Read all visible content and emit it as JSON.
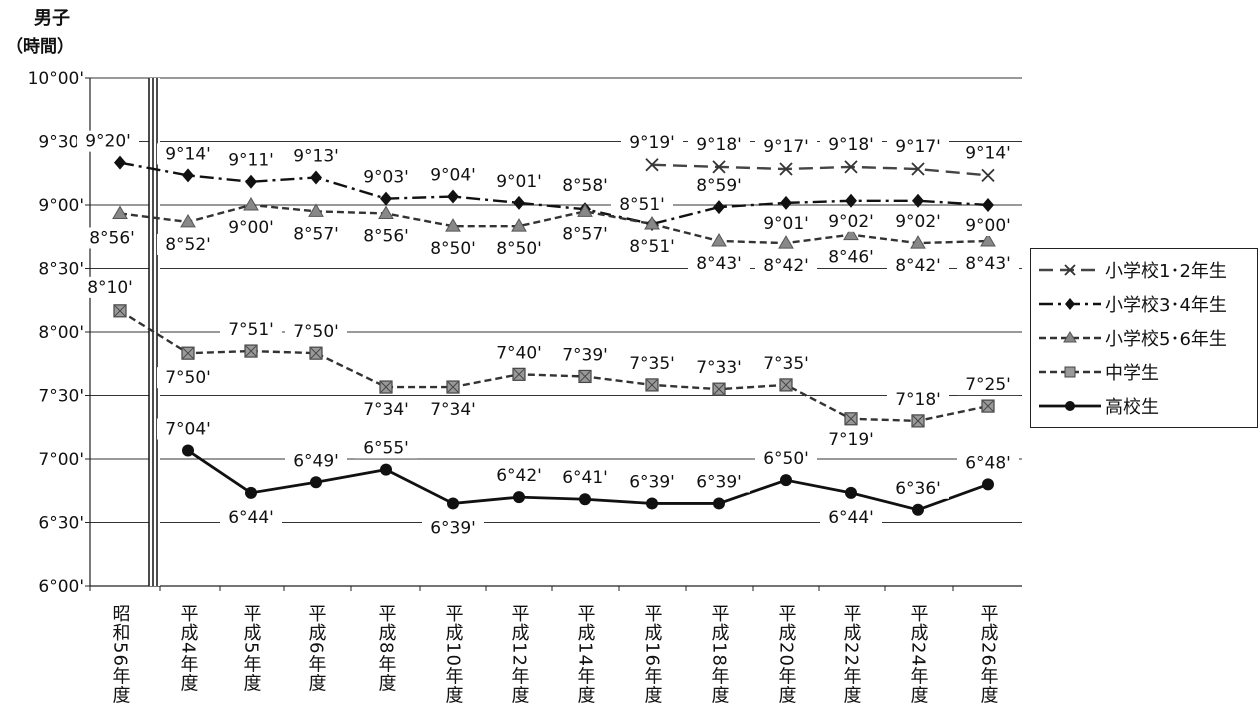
{
  "chart_data": {
    "type": "line",
    "title": "男子",
    "ylabel": "（時間）",
    "yunit": "minutes",
    "ylim": [
      360,
      600
    ],
    "yticks": [
      {
        "value": 600,
        "label": "10°00'"
      },
      {
        "value": 570,
        "label": "9°30'"
      },
      {
        "value": 540,
        "label": "9°00'"
      },
      {
        "value": 510,
        "label": "8°30'"
      },
      {
        "value": 480,
        "label": "8°00'"
      },
      {
        "value": 450,
        "label": "7°30'"
      },
      {
        "value": 420,
        "label": "7°00'"
      },
      {
        "value": 390,
        "label": "6°30'"
      },
      {
        "value": 360,
        "label": "6°00'"
      }
    ],
    "categories": [
      "昭和56年度",
      "平成4年度",
      "平成5年度",
      "平成6年度",
      "平成8年度",
      "平成10年度",
      "平成12年度",
      "平成14年度",
      "平成16年度",
      "平成18年度",
      "平成20年度",
      "平成22年度",
      "平成24年度",
      "平成26年度"
    ],
    "series": [
      {
        "name": "小学校1･2年生",
        "color": "#444444",
        "dash": "14 7",
        "marker": "x",
        "values": [
          null,
          null,
          null,
          null,
          null,
          null,
          null,
          null,
          559,
          558,
          557,
          558,
          557,
          554
        ],
        "labels": [
          null,
          null,
          null,
          null,
          null,
          null,
          null,
          null,
          "9°19'",
          "9°18'",
          "9°17'",
          "9°18'",
          "9°17'",
          "9°14'"
        ]
      },
      {
        "name": "小学校3･4年生",
        "color": "#111111",
        "dash": "14 5 3 5",
        "marker": "diamond",
        "values": [
          560,
          554,
          551,
          553,
          543,
          544,
          541,
          538,
          531,
          539,
          541,
          542,
          542,
          540
        ],
        "labels": [
          "9°20'",
          "9°14'",
          "9°11'",
          "9°13'",
          "9°03'",
          "9°04'",
          "9°01'",
          "8°58'",
          "8°51'",
          "8°59'",
          "9°01'",
          "9°02'",
          "9°02'",
          "9°00'"
        ]
      },
      {
        "name": "小学校5･6年生",
        "color": "#333333",
        "dash": "7 4",
        "marker": "triangle",
        "values": [
          536,
          532,
          540,
          537,
          536,
          530,
          530,
          537,
          531,
          523,
          522,
          526,
          522,
          523
        ],
        "labels": [
          "8°56'",
          "8°52'",
          "9°00'",
          "8°57'",
          "8°56'",
          "8°50'",
          "8°50'",
          "8°57'",
          "8°51'",
          "8°43'",
          "8°42'",
          "8°46'",
          "8°42'",
          "8°43'"
        ]
      },
      {
        "name": "中学生",
        "color": "#333333",
        "dash": "7 4",
        "marker": "square",
        "values": [
          490,
          470,
          471,
          470,
          454,
          454,
          460,
          459,
          455,
          453,
          455,
          439,
          438,
          445
        ],
        "labels": [
          "8°10'",
          "7°50'",
          "7°51'",
          "7°50'",
          "7°34'",
          "7°34'",
          "7°40'",
          "7°39'",
          "7°35'",
          "7°33'",
          "7°35'",
          "7°19'",
          "7°18'",
          "7°25'"
        ]
      },
      {
        "name": "高校生",
        "color": "#111111",
        "dash": "",
        "marker": "circle",
        "values": [
          null,
          424,
          404,
          409,
          415,
          399,
          402,
          401,
          399,
          399,
          410,
          404,
          396,
          408
        ],
        "labels": [
          null,
          "7°04'",
          "6°44'",
          "6°49'",
          "6°55'",
          "6°39'",
          "6°42'",
          "6°41'",
          "6°39'",
          "6°39'",
          "6°50'",
          "6°44'",
          "6°36'",
          "6°48'"
        ]
      }
    ],
    "legend_position": "right"
  }
}
